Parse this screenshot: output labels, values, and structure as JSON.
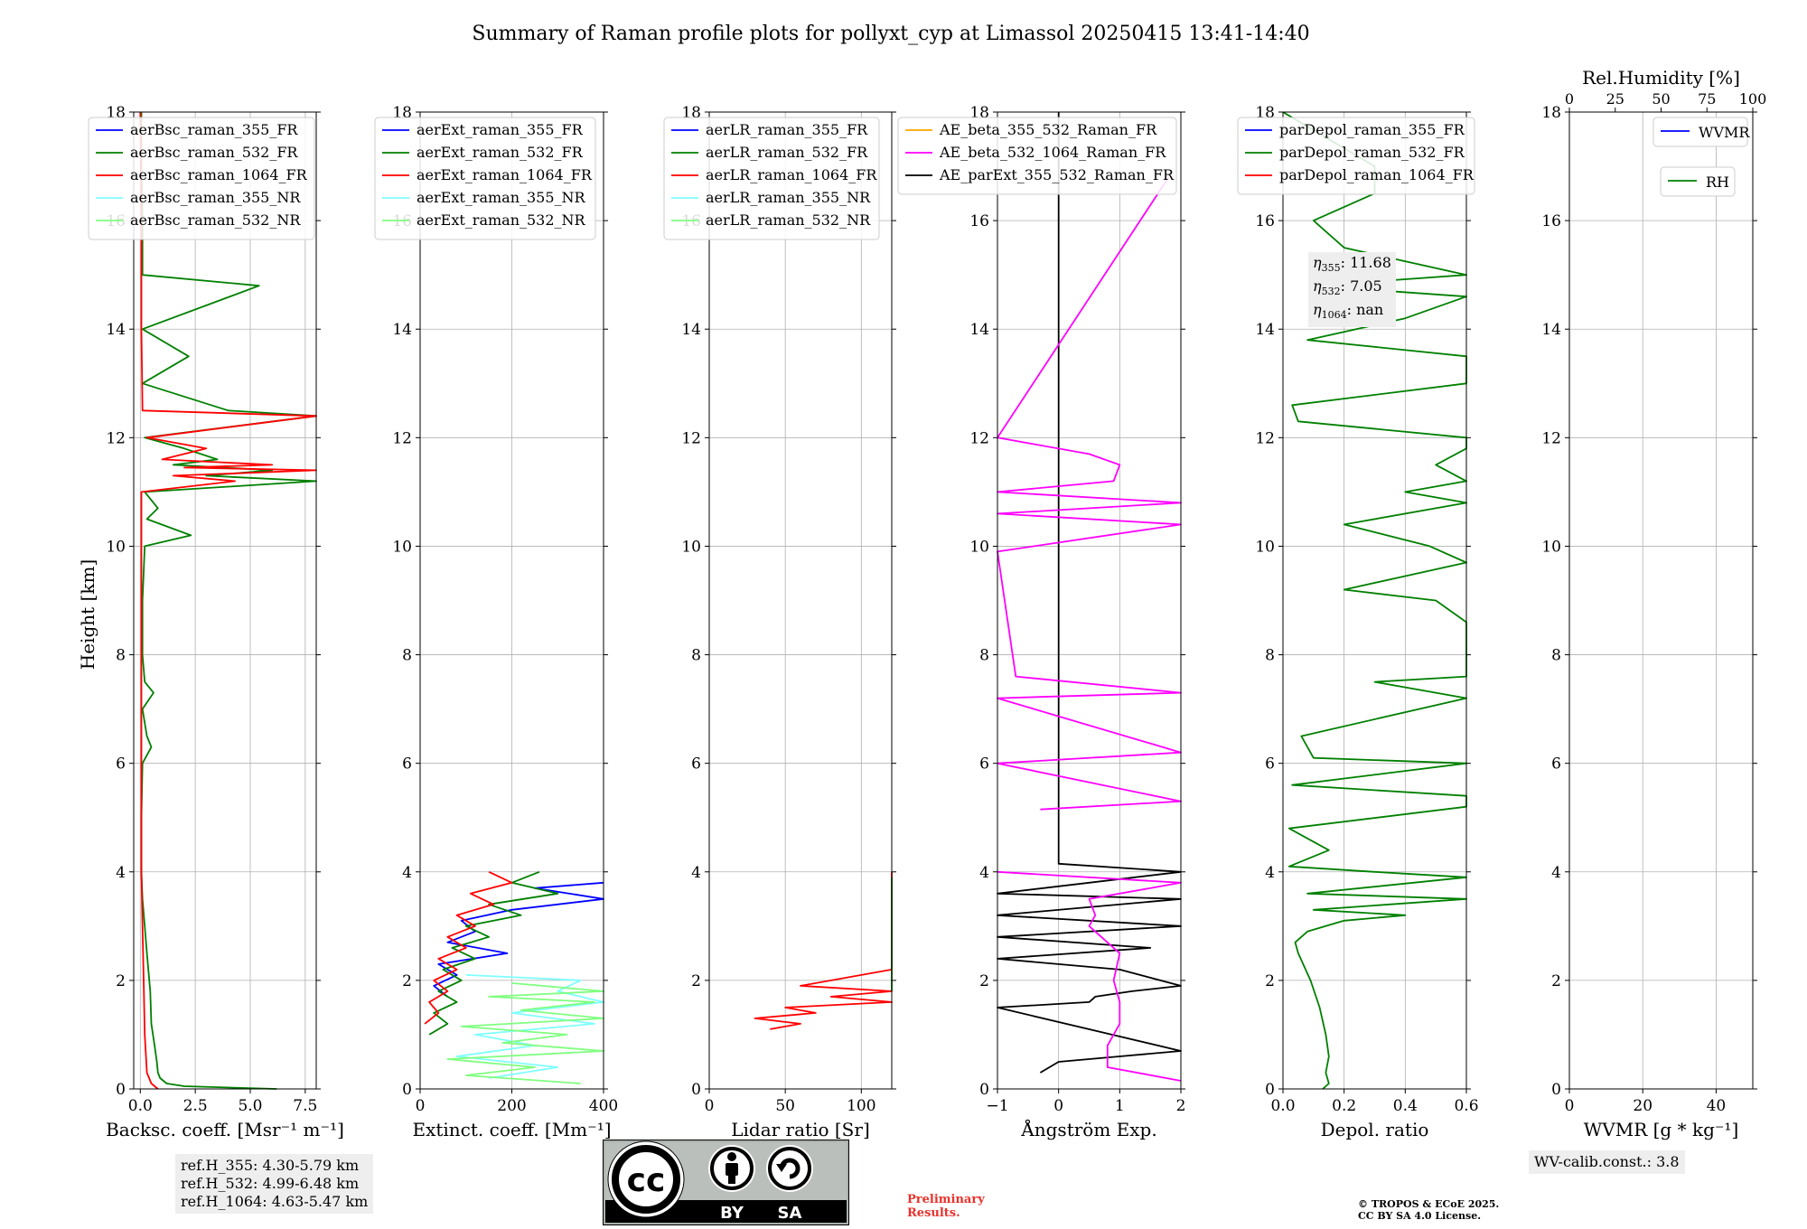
{
  "title": "Summary of Raman profile plots for pollyxt_cyp at Limassol 20250415 13:41-14:40",
  "y_label": "Height [km]",
  "colors": {
    "c355": "#0000ff",
    "c532": "#008000",
    "c1064": "#ff0000",
    "c355nr": "#80ffff",
    "c532nr": "#80ff80",
    "orange": "#ffa500",
    "magenta": "#ff00ff",
    "black": "#000000"
  },
  "chart_data": [
    {
      "id": "bsc",
      "type": "line",
      "xlabel": "Backsc. coeff. [Msr⁻¹ m⁻¹]",
      "xlim": [
        -0.3,
        8.0
      ],
      "ylim": [
        0,
        18
      ],
      "xticks": [
        0,
        2.5,
        5.0,
        7.5
      ],
      "xticklabels": [
        "0.0",
        "2.5",
        "5.0",
        "7.5"
      ],
      "yticks": [
        0,
        2,
        4,
        6,
        8,
        10,
        12,
        14,
        16,
        18
      ],
      "legend": [
        "aerBsc_raman_355_FR",
        "aerBsc_raman_532_FR",
        "aerBsc_raman_1064_FR",
        "aerBsc_raman_355_NR",
        "aerBsc_raman_532_NR"
      ],
      "legend_colors": [
        "#0000ff",
        "#008000",
        "#ff0000",
        "#80ffff",
        "#80ff80"
      ],
      "series": [
        {
          "color": "#008000",
          "y": [
            0,
            0.05,
            0.1,
            0.2,
            0.3,
            0.5,
            0.8,
            1.2,
            1.8,
            2.5,
            3.0,
            3.5,
            4.0,
            5.0,
            6.0,
            6.3,
            6.5,
            7.0,
            7.3,
            7.5,
            8.0,
            9.0,
            10.0,
            10.2,
            10.5,
            10.7,
            11.0,
            11.2,
            11.3,
            11.4,
            11.5,
            11.6,
            11.8,
            12.0,
            12.4,
            12.5,
            13.0,
            13.5,
            14.0,
            14.8,
            15.0,
            16.0,
            17.0,
            18.0
          ],
          "x": [
            6.2,
            2.0,
            1.2,
            0.9,
            0.8,
            0.75,
            0.65,
            0.5,
            0.45,
            0.3,
            0.2,
            0.1,
            0.05,
            0.05,
            0.1,
            0.5,
            0.3,
            0.1,
            0.6,
            0.2,
            0.1,
            0.1,
            0.2,
            2.3,
            0.3,
            0.8,
            0.2,
            8.0,
            3.0,
            6.0,
            1.5,
            3.5,
            2.0,
            0.2,
            8.0,
            4.0,
            0.1,
            2.2,
            0.1,
            5.4,
            0.1,
            0.1,
            0.05,
            0.05
          ]
        },
        {
          "color": "#ff0000",
          "y": [
            0,
            0.1,
            0.3,
            1.0,
            2.0,
            3.0,
            4.0,
            6.0,
            8.0,
            10.0,
            11.0,
            11.2,
            11.3,
            11.4,
            11.45,
            11.5,
            11.6,
            11.8,
            12.0,
            12.4,
            12.5,
            14.0,
            16.0,
            18.0
          ],
          "x": [
            0.8,
            0.5,
            0.3,
            0.2,
            0.15,
            0.1,
            0.05,
            0.05,
            0.05,
            0.05,
            0.05,
            4.3,
            1.5,
            8.0,
            2.0,
            6.0,
            1.0,
            3.0,
            0.3,
            8.0,
            0.1,
            0.05,
            0.05,
            0.0
          ]
        }
      ]
    },
    {
      "id": "ext",
      "type": "line",
      "xlabel": "Extinct. coeff. [Mm⁻¹]",
      "xlim": [
        0,
        400
      ],
      "ylim": [
        0,
        18
      ],
      "xticks": [
        0,
        200,
        400
      ],
      "xticklabels": [
        "0",
        "200",
        "400"
      ],
      "yticks": [
        0,
        2,
        4,
        6,
        8,
        10,
        12,
        14,
        16,
        18
      ],
      "legend": [
        "aerExt_raman_355_FR",
        "aerExt_raman_532_FR",
        "aerExt_raman_1064_FR",
        "aerExt_raman_355_NR",
        "aerExt_raman_532_NR"
      ],
      "legend_colors": [
        "#0000ff",
        "#008000",
        "#ff0000",
        "#80ffff",
        "#80ff80"
      ],
      "series": [
        {
          "color": "#80ffff",
          "y": [
            0.2,
            0.4,
            0.6,
            0.8,
            1.0,
            1.2,
            1.4,
            1.6,
            1.8,
            2.0,
            2.1
          ],
          "x": [
            150,
            300,
            80,
            250,
            120,
            380,
            200,
            400,
            300,
            350,
            100
          ]
        },
        {
          "color": "#80ff80",
          "y": [
            0.1,
            0.25,
            0.4,
            0.55,
            0.7,
            0.85,
            1.0,
            1.15,
            1.3,
            1.45,
            1.6,
            1.7,
            1.8,
            1.95
          ],
          "x": [
            350,
            100,
            250,
            60,
            400,
            180,
            320,
            90,
            400,
            220,
            380,
            150,
            400,
            200
          ]
        },
        {
          "color": "#0000ff",
          "y": [
            1.7,
            1.9,
            2.1,
            2.3,
            2.5,
            2.7,
            2.9,
            3.1,
            3.3,
            3.5,
            3.7,
            3.8
          ],
          "x": [
            60,
            30,
            80,
            40,
            190,
            60,
            120,
            90,
            200,
            400,
            250,
            400
          ]
        },
        {
          "color": "#008000",
          "y": [
            1.0,
            1.2,
            1.4,
            1.6,
            1.8,
            2.0,
            2.2,
            2.4,
            2.6,
            2.8,
            3.0,
            3.2,
            3.4,
            3.6,
            3.8,
            4.0
          ],
          "x": [
            20,
            60,
            30,
            80,
            40,
            90,
            50,
            120,
            70,
            150,
            100,
            220,
            150,
            300,
            200,
            260
          ]
        },
        {
          "color": "#ff0000",
          "y": [
            1.2,
            1.4,
            1.6,
            1.8,
            2.0,
            2.2,
            2.4,
            2.6,
            2.8,
            3.0,
            3.2,
            3.4,
            3.6,
            3.8,
            4.0
          ],
          "x": [
            10,
            40,
            20,
            60,
            30,
            80,
            40,
            100,
            60,
            120,
            80,
            160,
            110,
            200,
            150
          ]
        }
      ]
    },
    {
      "id": "lr",
      "type": "line",
      "xlabel": "Lidar ratio [Sr]",
      "xlim": [
        0,
        120
      ],
      "ylim": [
        0,
        18
      ],
      "xticks": [
        0,
        50,
        100
      ],
      "xticklabels": [
        "0",
        "50",
        "100"
      ],
      "yticks": [
        0,
        2,
        4,
        6,
        8,
        10,
        12,
        14,
        16,
        18
      ],
      "legend": [
        "aerLR_raman_355_FR",
        "aerLR_raman_532_FR",
        "aerLR_raman_1064_FR",
        "aerLR_raman_355_NR",
        "aerLR_raman_532_NR"
      ],
      "legend_colors": [
        "#0000ff",
        "#008000",
        "#ff0000",
        "#80ffff",
        "#80ff80"
      ],
      "series": [
        {
          "color": "#ff0000",
          "y": [
            1.1,
            1.2,
            1.3,
            1.4,
            1.5,
            1.6,
            1.7,
            1.8,
            1.9,
            2.2,
            2.6,
            2.8,
            3.0,
            3.4,
            3.8,
            4.0
          ],
          "x": [
            40,
            60,
            30,
            70,
            50,
            120,
            80,
            120,
            60,
            120,
            120,
            120,
            120,
            120,
            120,
            120
          ]
        },
        {
          "color": "#008000",
          "y": [
            1.8,
            3.2,
            3.5,
            3.9
          ],
          "x": [
            120,
            120,
            120,
            120
          ]
        }
      ]
    },
    {
      "id": "ae",
      "type": "line",
      "xlabel": "Ångström Exp.",
      "xlim": [
        -1,
        2
      ],
      "ylim": [
        0,
        18
      ],
      "xticks": [
        -1,
        0,
        1,
        2
      ],
      "xticklabels": [
        "−1",
        "0",
        "1",
        "2"
      ],
      "yticks": [
        0,
        2,
        4,
        6,
        8,
        10,
        12,
        14,
        16,
        18
      ],
      "legend": [
        "AE_beta_355_532_Raman_FR",
        "AE_beta_532_1064_Raman_FR",
        "AE_parExt_355_532_Raman_FR"
      ],
      "legend_colors": [
        "#ffa500",
        "#ff00ff",
        "#000000"
      ],
      "series": [
        {
          "color": "#000000",
          "y": [
            0.3,
            0.5,
            0.6,
            0.7,
            1.5,
            1.6,
            1.7,
            1.8,
            1.9,
            2.2,
            2.4,
            2.6,
            2.8,
            3.0,
            3.2,
            3.5,
            3.6,
            4.0,
            4.15,
            4.2,
            18.0
          ],
          "x": [
            -0.3,
            0.0,
            1.0,
            2.0,
            -1.0,
            0.5,
            0.6,
            1.2,
            2.0,
            1.0,
            -1.0,
            1.5,
            -1.0,
            2.0,
            -1.0,
            2.0,
            -1.0,
            2.0,
            0.0,
            0.0,
            0.0
          ]
        },
        {
          "color": "#ff00ff",
          "y": [
            0.15,
            0.4,
            0.8,
            1.2,
            1.6,
            2.0,
            2.5,
            3.0,
            3.2,
            3.5,
            3.8,
            4.0
          ],
          "x": [
            2.0,
            0.8,
            0.8,
            1.0,
            1.0,
            0.9,
            1.0,
            0.5,
            0.6,
            0.5,
            2.0,
            -1.0
          ]
        },
        {
          "color": "#ff00ff",
          "y": [
            5.15,
            5.3,
            6.0,
            6.2,
            7.2,
            7.3,
            7.6,
            9.9,
            10.4,
            10.6,
            10.8,
            11.0,
            11.2,
            11.5,
            11.7,
            12.0,
            16.8
          ],
          "x": [
            -0.3,
            2.0,
            -1.0,
            2.0,
            -1.0,
            2.0,
            -0.7,
            -1.0,
            2.0,
            -1.0,
            2.0,
            -1.0,
            0.9,
            1.0,
            0.5,
            -1.0,
            1.8
          ]
        }
      ]
    },
    {
      "id": "depol",
      "type": "line",
      "xlabel": "Depol. ratio",
      "xlim": [
        0,
        0.6
      ],
      "ylim": [
        0,
        18
      ],
      "xticks": [
        0,
        0.2,
        0.4,
        0.6
      ],
      "xticklabels": [
        "0.0",
        "0.2",
        "0.4",
        "0.6"
      ],
      "yticks": [
        0,
        2,
        4,
        6,
        8,
        10,
        12,
        14,
        16,
        18
      ],
      "legend": [
        "parDepol_raman_355_FR",
        "parDepol_raman_532_FR",
        "parDepol_raman_1064_FR"
      ],
      "legend_colors": [
        "#0000ff",
        "#008000",
        "#ff0000"
      ],
      "series": [
        {
          "color": "#008000",
          "y": [
            0,
            0.1,
            0.3,
            0.6,
            1.0,
            1.5,
            2.0,
            2.5,
            2.7,
            2.9,
            3.1,
            3.2,
            3.3,
            3.5,
            3.6,
            3.9,
            4.0,
            4.1,
            4.4,
            4.8,
            5.2,
            5.4,
            5.6,
            6.0,
            6.1,
            6.5,
            7.2,
            7.5,
            7.6,
            8.6,
            9.0,
            9.2,
            9.7,
            10.0,
            10.4,
            10.8,
            11.0,
            11.2,
            11.5,
            11.8,
            12.0,
            12.3,
            12.6,
            13.0,
            13.5,
            13.8,
            14.2,
            14.6,
            14.8,
            15.0,
            15.5,
            16.0,
            16.5,
            17.0,
            18.0
          ],
          "x": [
            0.13,
            0.15,
            0.14,
            0.15,
            0.14,
            0.12,
            0.09,
            0.05,
            0.04,
            0.08,
            0.2,
            0.4,
            0.1,
            0.6,
            0.08,
            0.6,
            0.3,
            0.02,
            0.15,
            0.02,
            0.6,
            0.6,
            0.03,
            0.6,
            0.1,
            0.06,
            0.6,
            0.3,
            0.6,
            0.6,
            0.5,
            0.2,
            0.6,
            0.48,
            0.2,
            0.6,
            0.4,
            0.6,
            0.5,
            0.6,
            0.6,
            0.05,
            0.03,
            0.6,
            0.6,
            0.08,
            0.4,
            0.6,
            0.1,
            0.6,
            0.2,
            0.1,
            0.3,
            0.3,
            0.0
          ]
        }
      ]
    },
    {
      "id": "wv",
      "type": "line",
      "xlabel": "WVMR [g * kg⁻¹]",
      "xlim": [
        0,
        50
      ],
      "ylim": [
        0,
        18
      ],
      "xticks": [
        0,
        20,
        40
      ],
      "xticklabels": [
        "0",
        "20",
        "40"
      ],
      "yticks": [
        0,
        2,
        4,
        6,
        8,
        10,
        12,
        14,
        16,
        18
      ],
      "top_axis_label": "Rel.Humidity [%]",
      "top_xlim": [
        0,
        100
      ],
      "top_xticks": [
        0,
        25,
        50,
        75,
        100
      ],
      "top_xticklabels": [
        "0",
        "25",
        "50",
        "75",
        "100"
      ],
      "legend": [
        "WVMR"
      ],
      "legend_colors": [
        "#0000ff"
      ],
      "legend2": [
        "RH"
      ],
      "legend2_colors": [
        "#008000"
      ],
      "series": []
    }
  ],
  "annotations": {
    "eta_355_label": "η",
    "eta_355_sub": "355",
    "eta_355_value": ": 11.68",
    "eta_532_label": "η",
    "eta_532_sub": "532",
    "eta_532_value": ": 7.05",
    "eta_1064_label": "η",
    "eta_1064_sub": "1064",
    "eta_1064_value": ": nan",
    "ref_h": [
      "ref.H_355: 4.30-5.79 km",
      "ref.H_532: 4.99-6.48 km",
      "ref.H_1064: 4.63-5.47 km"
    ],
    "wv_calib": "WV-calib.const.: 3.8"
  },
  "license_badge": {
    "cc": "cc",
    "by": "BY",
    "sa": "SA"
  },
  "footer": {
    "preliminary": [
      "Preliminary",
      "Results."
    ],
    "copyright": [
      "© TROPOS & ECoE 2025.",
      "CC BY SA 4.0 License."
    ]
  }
}
